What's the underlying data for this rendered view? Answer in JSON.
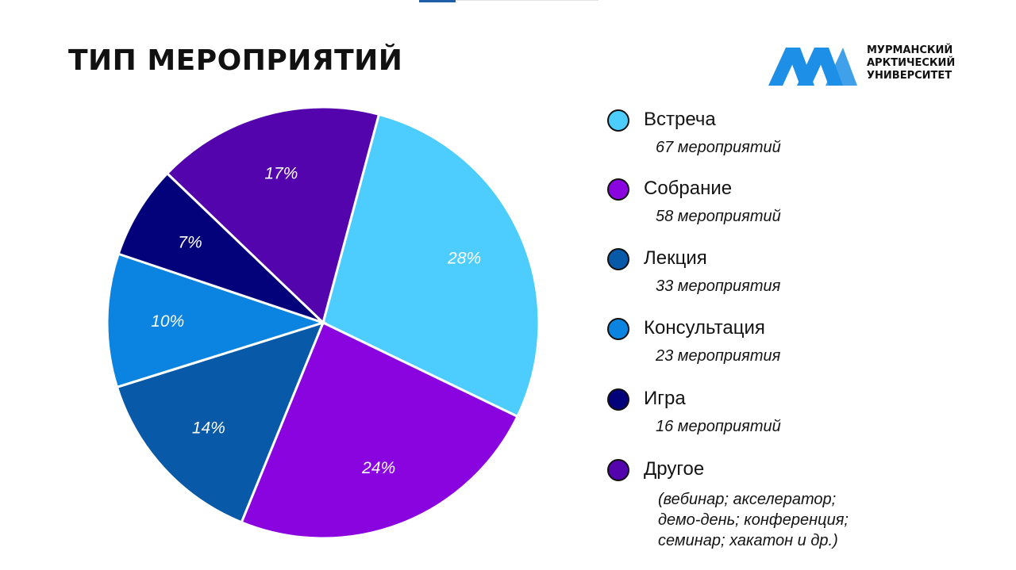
{
  "title": "ТИП МЕРОПРИЯТИЙ",
  "logo": {
    "line1": "МУРМАНСКИЙ",
    "line2": "АРКТИЧЕСКИЙ",
    "line3": "УНИВЕРСИТЕТ",
    "icon": "mau-logo-icon",
    "color": "#1e8fe6"
  },
  "chart_data": {
    "type": "pie",
    "slices": [
      {
        "label": "28%",
        "value": 28,
        "color": "#4dcdfd"
      },
      {
        "label": "24%",
        "value": 24,
        "color": "#8a04e0"
      },
      {
        "label": "14%",
        "value": 14,
        "color": "#0859a8"
      },
      {
        "label": "10%",
        "value": 10,
        "color": "#0a84e0"
      },
      {
        "label": "7%",
        "value": 7,
        "color": "#03027a"
      },
      {
        "label": "17%",
        "value": 17,
        "color": "#5304ad"
      }
    ],
    "legend": [
      {
        "name": "Встреча",
        "count": "67 мероприятий",
        "color": "#4dcdfd"
      },
      {
        "name": "Собрание",
        "count": "58 мероприятий",
        "color": "#8a04e0"
      },
      {
        "name": "Лекция",
        "count": "33 мероприятия",
        "color": "#0859a8"
      },
      {
        "name": "Консультация",
        "count": "23 мероприятия",
        "color": "#0a84e0"
      },
      {
        "name": "Игра",
        "count": "16 мероприятий",
        "color": "#03027a"
      },
      {
        "name": "Другое",
        "color": "#5304ad",
        "note": [
          "(вебинар; акселератор;",
          "демо-день; конференция;",
          "семинар; хакатон и др.)"
        ]
      }
    ]
  }
}
